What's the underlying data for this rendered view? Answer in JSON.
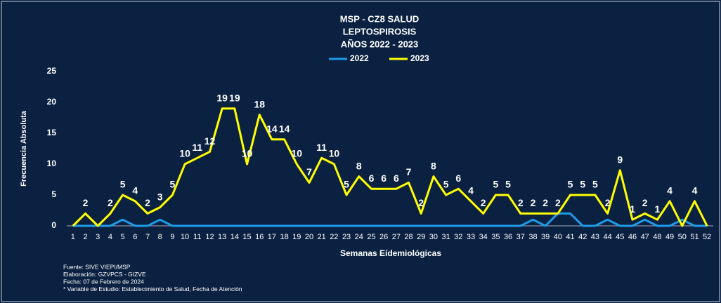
{
  "chart_data": {
    "type": "line",
    "title": [
      "MSP - CZ8 SALUD",
      "LEPTOSPIROSIS",
      "AÑOS 2022 - 2023"
    ],
    "x_label": "Semanas Eídemiológicas",
    "y_label": "Frecuencia Absoluta",
    "categories": [
      "1",
      "2",
      "3",
      "4",
      "5",
      "6",
      "7",
      "8",
      "9",
      "10",
      "11",
      "12",
      "13",
      "14",
      "15",
      "16",
      "17",
      "18",
      "19",
      "20",
      "21",
      "22",
      "23",
      "24",
      "25",
      "26",
      "27",
      "28",
      "29",
      "30",
      "31",
      "32",
      "33",
      "34",
      "35",
      "36",
      "37",
      "38",
      "39",
      "40",
      "41",
      "42",
      "43",
      "44",
      "45",
      "46",
      "47",
      "48",
      "49",
      "50",
      "51",
      "52"
    ],
    "series": [
      {
        "name": "2022",
        "color": "#1e9be8",
        "values": [
          0,
          0,
          0,
          0,
          1,
          0,
          0,
          1,
          0,
          0,
          0,
          0,
          0,
          0,
          0,
          0,
          0,
          0,
          0,
          0,
          0,
          0,
          0,
          0,
          0,
          0,
          0,
          0,
          0,
          0,
          0,
          0,
          0,
          0,
          0,
          0,
          0,
          1,
          0,
          2,
          2,
          0,
          0,
          1,
          0,
          0,
          1,
          0,
          0,
          1,
          0,
          0
        ]
      },
      {
        "name": "2023",
        "color": "#ffff00",
        "values": [
          0,
          2,
          0,
          2,
          5,
          4,
          2,
          3,
          5,
          10,
          11,
          12,
          19,
          19,
          10,
          18,
          14,
          14,
          10,
          7,
          11,
          10,
          5,
          8,
          6,
          6,
          6,
          7,
          2,
          8,
          5,
          6,
          4,
          2,
          5,
          5,
          2,
          2,
          2,
          2,
          5,
          5,
          5,
          2,
          9,
          1,
          2,
          1,
          4,
          0,
          4,
          0
        ]
      }
    ],
    "labeled_series": 1,
    "ylim": [
      0,
      25
    ],
    "yticks": [
      0,
      5,
      10,
      15,
      20,
      25
    ],
    "legend": "top",
    "notes": [
      "Fuente:  SIVE VIEPI/MSP",
      "Elaboración: GZVPCS - GIZVE",
      "Fecha: 07 de  Febrero de 2024",
      "* Variable de Estudio: Establecimiento de Salud, Fecha de Atención"
    ]
  }
}
